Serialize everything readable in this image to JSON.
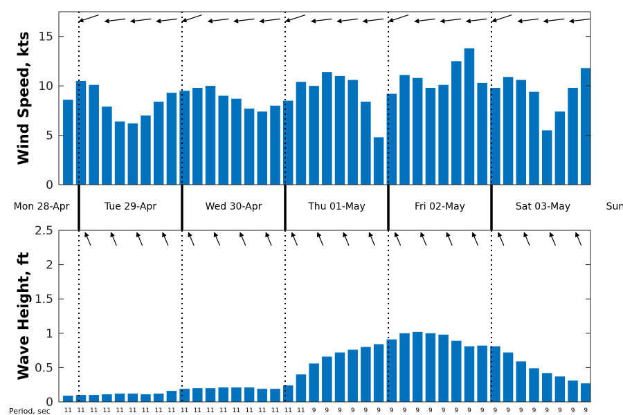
{
  "chart_data": [
    {
      "type": "bar",
      "ylabel": "Wind Speed, kts",
      "ylim": [
        0,
        17.5
      ],
      "yticks": [
        0,
        5,
        10,
        15
      ],
      "color": "#0072BD",
      "values": [
        8.6,
        10.5,
        10.1,
        7.9,
        6.4,
        6.2,
        7.0,
        8.4,
        9.3,
        9.5,
        9.8,
        10.0,
        9.0,
        8.7,
        7.7,
        7.4,
        8.0,
        8.5,
        10.4,
        10.0,
        11.4,
        11.0,
        10.6,
        8.4,
        4.8,
        9.2,
        11.1,
        10.8,
        9.8,
        10.1,
        12.5,
        13.8,
        10.3,
        9.8,
        10.9,
        10.6,
        9.4,
        5.5,
        7.4,
        9.8,
        11.8
      ],
      "direction_arrows": "wind-from arrows drawn above each 3-hourly bar, mostly from the east"
    },
    {
      "type": "bar",
      "ylabel": "Wave Height, ft",
      "ylim": [
        0,
        2.5
      ],
      "yticks": [
        "0",
        "0.5",
        "1",
        "1.5",
        "2",
        "2.5"
      ],
      "color": "#0072BD",
      "values": [
        0.09,
        0.1,
        0.1,
        0.11,
        0.12,
        0.12,
        0.11,
        0.12,
        0.16,
        0.19,
        0.2,
        0.2,
        0.21,
        0.21,
        0.21,
        0.19,
        0.19,
        0.24,
        0.4,
        0.56,
        0.66,
        0.72,
        0.76,
        0.8,
        0.84,
        0.91,
        1.0,
        1.02,
        1.0,
        0.98,
        0.89,
        0.81,
        0.82,
        0.81,
        0.72,
        0.59,
        0.49,
        0.42,
        0.37,
        0.31,
        0.27
      ],
      "period_label": "Period, sec",
      "periods": [
        "11",
        "11",
        "11",
        "11",
        "11",
        "11",
        "11",
        "11",
        "11",
        "11",
        "11",
        "11",
        "11",
        "11",
        "11",
        "11",
        "11",
        "11",
        "11",
        "9",
        "9",
        "9",
        "9",
        "9",
        "9",
        "9",
        "9",
        "9",
        "9",
        "9",
        "9",
        "9",
        "9",
        "9",
        "9",
        "9",
        "9",
        "9",
        "9",
        "9",
        "9"
      ]
    }
  ],
  "days": [
    "Mon 28-Apr",
    "Tue 29-Apr",
    "Wed 30-Apr",
    "Thu 01-May",
    "Fri 02-May",
    "Sat 03-May",
    "Sun"
  ]
}
